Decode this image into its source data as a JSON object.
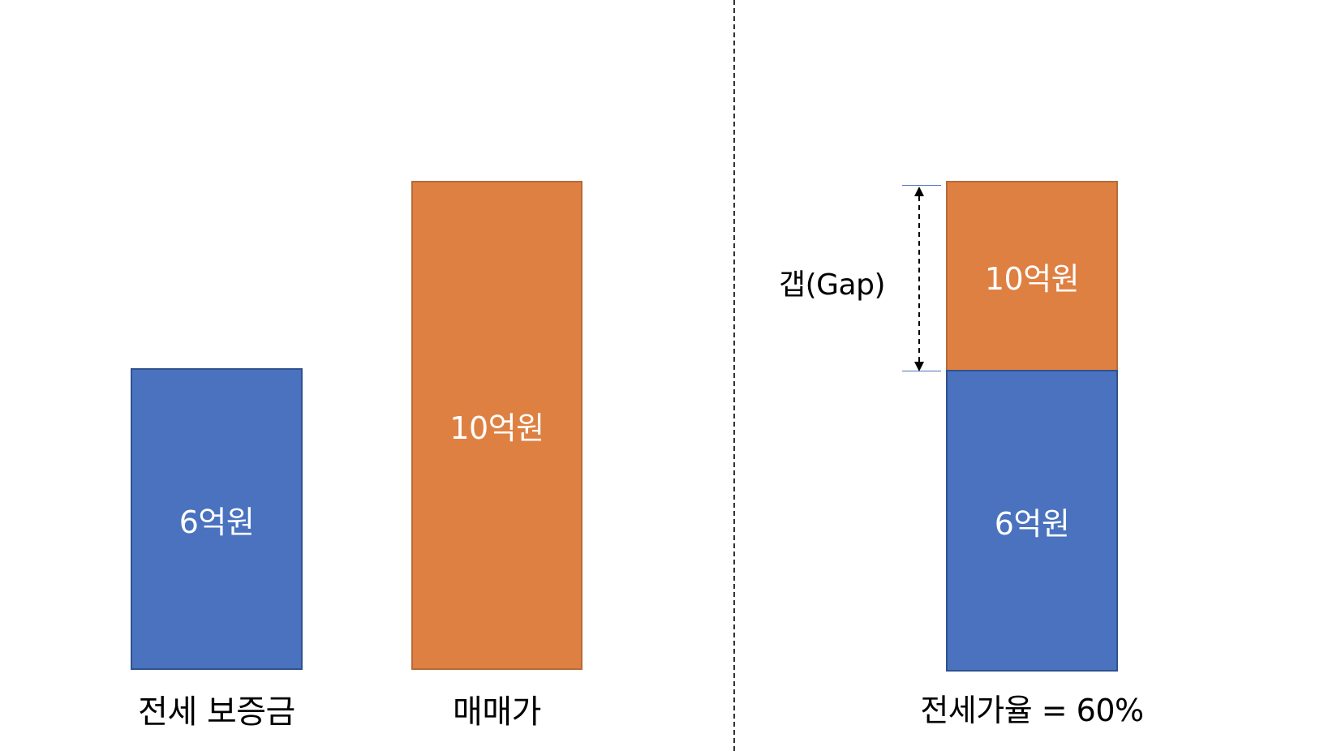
{
  "left_panel": {
    "bars": [
      {
        "value_label": "6억원",
        "category": "전세 보증금"
      },
      {
        "value_label": "10억원",
        "category": "매매가"
      }
    ]
  },
  "right_panel": {
    "top_segment_label": "10억원",
    "bottom_segment_label": "6억원",
    "gap_label": "갭(Gap)",
    "ratio_label": "전세가율 = 60%"
  },
  "colors": {
    "jeonse_blue": "#4a72bf",
    "price_orange": "#df8043",
    "divider": "#333333"
  }
}
